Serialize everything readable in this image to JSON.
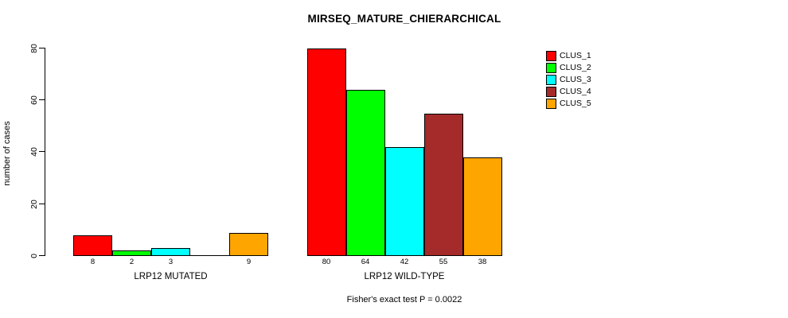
{
  "chart_data": {
    "type": "bar",
    "title": "MIRSEQ_MATURE_CHIERARCHICAL",
    "ylabel": "number of cases",
    "xlabel": "",
    "ylim": [
      0,
      80
    ],
    "yticks": [
      0,
      20,
      40,
      60,
      80
    ],
    "grid": false,
    "legend_position": "top-right",
    "legend": [
      {
        "label": "CLUS_1",
        "color": "#FF0000"
      },
      {
        "label": "CLUS_2",
        "color": "#00FF00"
      },
      {
        "label": "CLUS_3",
        "color": "#00FFFF"
      },
      {
        "label": "CLUS_4",
        "color": "#A52A2A"
      },
      {
        "label": "CLUS_5",
        "color": "#FFA500"
      }
    ],
    "series_names": [
      "CLUS_1",
      "CLUS_2",
      "CLUS_3",
      "CLUS_4",
      "CLUS_5"
    ],
    "groups": [
      {
        "label": "LRP12 MUTATED",
        "values": [
          8,
          2,
          3,
          0,
          9
        ],
        "bar_labels": [
          "8",
          "2",
          "3",
          "",
          "9"
        ]
      },
      {
        "label": "LRP12 WILD-TYPE",
        "values": [
          80,
          64,
          42,
          55,
          38
        ],
        "bar_labels": [
          "80",
          "64",
          "42",
          "55",
          "38"
        ]
      }
    ],
    "annotation": "Fisher's exact test P = 0.0022"
  }
}
